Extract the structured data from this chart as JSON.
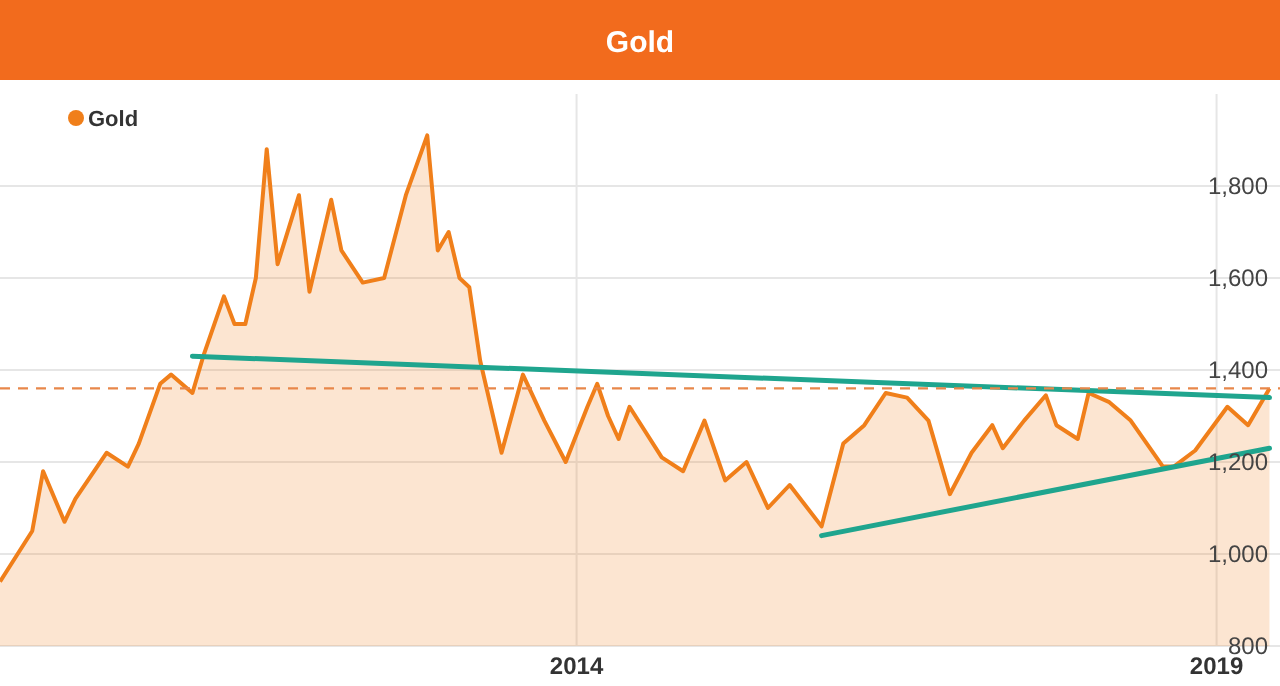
{
  "chart_data": {
    "type": "area",
    "title": "Gold",
    "x": [
      "2009-07",
      "2009-10",
      "2009-11",
      "2010-01",
      "2010-02",
      "2010-05",
      "2010-07",
      "2010-08",
      "2010-10",
      "2010-11",
      "2011-01",
      "2011-02",
      "2011-04",
      "2011-05",
      "2011-06",
      "2011-07",
      "2011-08",
      "2011-09",
      "2011-11",
      "2011-12",
      "2012-02",
      "2012-03",
      "2012-05",
      "2012-07",
      "2012-09",
      "2012-11",
      "2012-12",
      "2013-01",
      "2013-02",
      "2013-03",
      "2013-04",
      "2013-06",
      "2013-08",
      "2013-10",
      "2013-12",
      "2014-02",
      "2014-03",
      "2014-04",
      "2014-05",
      "2014-06",
      "2014-09",
      "2014-11",
      "2015-01",
      "2015-03",
      "2015-05",
      "2015-07",
      "2015-09",
      "2015-12",
      "2016-02",
      "2016-04",
      "2016-06",
      "2016-08",
      "2016-10",
      "2016-12",
      "2017-02",
      "2017-04",
      "2017-05",
      "2017-07",
      "2017-09",
      "2017-10",
      "2017-12",
      "2018-01",
      "2018-03",
      "2018-05",
      "2018-08",
      "2018-09",
      "2018-11",
      "2019-02",
      "2019-04",
      "2019-06"
    ],
    "series": [
      {
        "name": "Gold",
        "color": "#f07f1a",
        "values": [
          940,
          1050,
          1180,
          1070,
          1120,
          1220,
          1190,
          1240,
          1370,
          1390,
          1350,
          1430,
          1560,
          1500,
          1500,
          1600,
          1880,
          1630,
          1780,
          1570,
          1770,
          1660,
          1590,
          1600,
          1780,
          1910,
          1660,
          1700,
          1600,
          1580,
          1420,
          1220,
          1390,
          1290,
          1200,
          1320,
          1370,
          1300,
          1250,
          1320,
          1210,
          1180,
          1290,
          1160,
          1200,
          1100,
          1150,
          1060,
          1240,
          1280,
          1350,
          1340,
          1290,
          1130,
          1220,
          1280,
          1230,
          1290,
          1345,
          1280,
          1250,
          1350,
          1330,
          1290,
          1190,
          1190,
          1225,
          1320,
          1280,
          1360
        ]
      },
      {
        "type": "line",
        "color": "#1fa58e",
        "x": [
          "2011-01",
          "2019-06"
        ],
        "values": [
          1430,
          1340
        ]
      },
      {
        "type": "line",
        "color": "#1fa58e",
        "x": [
          "2015-12",
          "2019-06"
        ],
        "values": [
          1040,
          1230
        ]
      }
    ],
    "xlim": [
      "2009-07",
      "2019-07"
    ],
    "xticks": [
      "2014",
      "2019"
    ],
    "ylim": [
      800,
      2000
    ],
    "yticks": [
      {
        "value": 800,
        "label": "800"
      },
      {
        "value": 1000,
        "label": "1,000"
      },
      {
        "value": 1200,
        "label": "1,200"
      },
      {
        "value": 1400,
        "label": "1,400"
      },
      {
        "value": 1600,
        "label": "1,600"
      },
      {
        "value": 1800,
        "label": "1,800"
      }
    ],
    "ref_lines": [
      {
        "axis": "y",
        "value": 1360,
        "color": "#e8874a",
        "line_style": "dashed"
      }
    ],
    "grid": true,
    "legend": "top left"
  }
}
